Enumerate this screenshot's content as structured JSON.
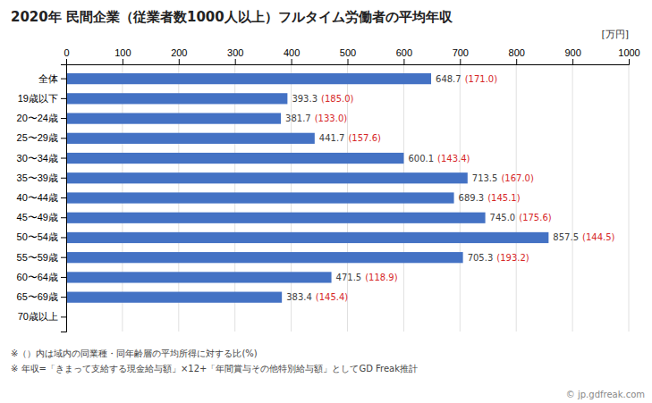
{
  "chart_data": {
    "type": "bar",
    "orientation": "horizontal",
    "title": "2020年 民間企業（従業者数1000人以上）フルタイム労働者の平均年収",
    "xlabel": "[万円]",
    "categories": [
      "全体",
      "19歳以下",
      "20〜24歳",
      "25〜29歳",
      "30〜34歳",
      "35〜39歳",
      "40〜44歳",
      "45〜49歳",
      "50〜54歳",
      "55〜59歳",
      "60〜64歳",
      "65〜69歳",
      "70歳以上"
    ],
    "values": [
      648.7,
      393.3,
      381.7,
      441.7,
      600.1,
      713.5,
      689.3,
      745.0,
      857.5,
      705.3,
      471.5,
      383.4,
      0
    ],
    "value_labels": [
      "648.7",
      "393.3",
      "381.7",
      "441.7",
      "600.1",
      "713.5",
      "689.3",
      "745.0",
      "857.5",
      "705.3",
      "471.5",
      "383.4",
      null
    ],
    "ratio_labels": [
      "(171.0)",
      "(185.0)",
      "(133.0)",
      "(157.6)",
      "(143.4)",
      "(167.0)",
      "(145.1)",
      "(175.6)",
      "(144.5)",
      "(193.2)",
      "(118.9)",
      "(145.4)",
      null
    ],
    "color": "#4472C4",
    "xlim": [
      0,
      1000
    ],
    "xticks": [
      0,
      100,
      200,
      300,
      400,
      500,
      600,
      700,
      800,
      900,
      1000
    ],
    "grid": true,
    "data_labels": true,
    "notes": [
      "※（）内は域内の同業種・同年齢層の平均所得に対する比(%)",
      "※ 年収=「きまって支給する現金給与額」×12+「年間賞与その他特別給与額」としてGD Freak推計"
    ],
    "source": "© jp.gdfreak.com"
  }
}
